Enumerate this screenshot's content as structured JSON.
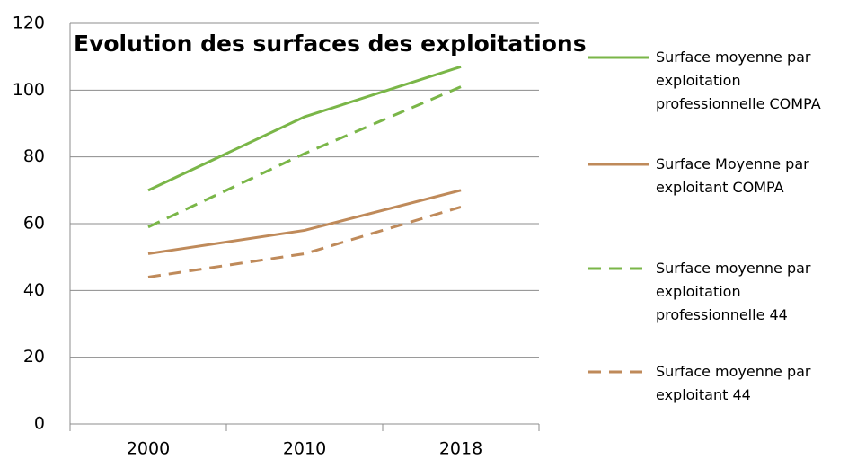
{
  "chart_data": {
    "type": "line",
    "title": "Evolution des surfaces des exploitations",
    "categories": [
      "2000",
      "2010",
      "2018"
    ],
    "series": [
      {
        "name": "Surface moyenne par exploitation professionnelle COMPA",
        "color": "#7ab648",
        "dashed": false,
        "values": [
          70,
          92,
          107
        ]
      },
      {
        "name": "Surface Moyenne par exploitant COMPA",
        "color": "#bf8a5a",
        "dashed": false,
        "values": [
          51,
          58,
          70
        ]
      },
      {
        "name": "Surface moyenne par exploitation professionnelle 44",
        "color": "#7ab648",
        "dashed": true,
        "values": [
          59,
          81,
          101
        ]
      },
      {
        "name": "Surface moyenne par exploitant 44",
        "color": "#bf8a5a",
        "dashed": true,
        "values": [
          44,
          51,
          65
        ]
      }
    ],
    "ylim": [
      0,
      120
    ],
    "yticks": [
      0,
      20,
      40,
      60,
      80,
      100,
      120
    ],
    "grid": true,
    "legend": "right"
  }
}
